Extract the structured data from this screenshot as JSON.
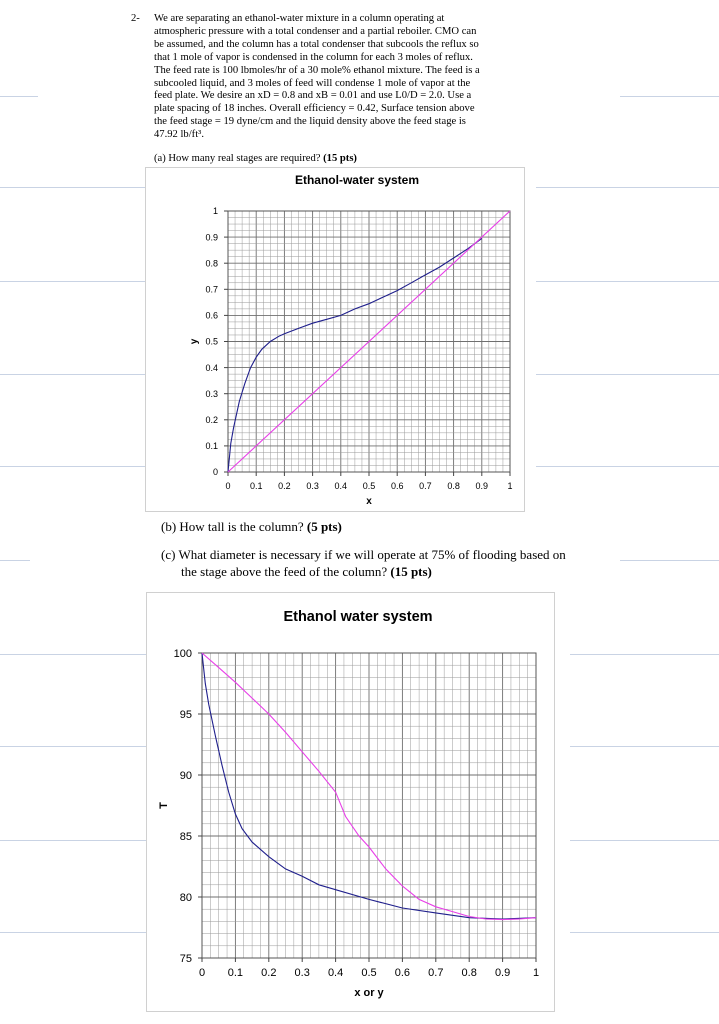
{
  "problem": {
    "number": "2-",
    "lines": [
      "We are separating an ethanol-water mixture in a column operating at",
      "atmospheric pressure with a total condenser and a partial reboiler. CMO can",
      "be assumed, and the column has a total condenser that subcools the reflux so",
      "that 1 mole of vapor is condensed in the column for each 3 moles of reflux.",
      "The feed rate is 100 lbmoles/hr of a 30 mole% ethanol mixture.  The feed is a",
      "subcooled liquid, and 3 moles of feed will condense 1 mole of vapor at the",
      "feed plate.  We desire an xD = 0.8 and xB = 0.01 and use L0/D = 2.0.  Use a",
      "plate spacing of 18 inches. Overall efficiency = 0.42, Surface tension above",
      "the feed stage = 19 dyne/cm and the liquid density above the feed stage is",
      "47.92 lb/ft³."
    ],
    "part_a": {
      "text": "(a) How many real stages are required? ",
      "points": "(15 pts)"
    },
    "part_b": {
      "text": "(b) How tall is the column? ",
      "points": "(5 pts)"
    },
    "part_c": {
      "text1": "(c) What diameter is necessary if we will operate at 75% of flooding based on",
      "text2": "the stage above the feed of the column? ",
      "points": "(15 pts)"
    }
  },
  "chart_data": [
    {
      "type": "line",
      "title": "Ethanol-water system",
      "xlabel": "x",
      "ylabel": "y",
      "xlim": [
        0,
        1
      ],
      "ylim": [
        0,
        1
      ],
      "grid": true,
      "x_ticks": [
        "0",
        "0.1",
        "0.2",
        "0.3",
        "0.4",
        "0.5",
        "0.6",
        "0.7",
        "0.8",
        "0.9",
        "1"
      ],
      "y_ticks": [
        "0",
        "0.1",
        "0.2",
        "0.3",
        "0.4",
        "0.5",
        "0.6",
        "0.7",
        "0.8",
        "0.9",
        "1"
      ],
      "series": [
        {
          "color": "#1f1f8c",
          "x": [
            0,
            0.01,
            0.02,
            0.04,
            0.06,
            0.08,
            0.1,
            0.12,
            0.15,
            0.18,
            0.2,
            0.25,
            0.3,
            0.35,
            0.4,
            0.45,
            0.5,
            0.55,
            0.6,
            0.65,
            0.7,
            0.75,
            0.8,
            0.85,
            0.9
          ],
          "y": [
            0,
            0.11,
            0.17,
            0.27,
            0.34,
            0.4,
            0.44,
            0.47,
            0.5,
            0.52,
            0.53,
            0.55,
            0.57,
            0.585,
            0.6,
            0.625,
            0.645,
            0.67,
            0.695,
            0.725,
            0.755,
            0.785,
            0.82,
            0.855,
            0.895
          ]
        },
        {
          "color": "#e83ee8",
          "x": [
            0,
            1
          ],
          "y": [
            0,
            1
          ]
        }
      ]
    },
    {
      "type": "line",
      "title": "Ethanol water system",
      "xlabel": "x or y",
      "ylabel": "T",
      "xlim": [
        0,
        1
      ],
      "ylim": [
        75,
        100
      ],
      "grid": true,
      "x_ticks": [
        "0",
        "0.1",
        "0.2",
        "0.3",
        "0.4",
        "0.5",
        "0.6",
        "0.7",
        "0.8",
        "0.9",
        "1"
      ],
      "y_ticks": [
        "75",
        "80",
        "85",
        "90",
        "95",
        "100"
      ],
      "series": [
        {
          "color": "#1f1f8c",
          "x": [
            0,
            0.01,
            0.02,
            0.04,
            0.06,
            0.08,
            0.1,
            0.12,
            0.15,
            0.2,
            0.25,
            0.3,
            0.35,
            0.4,
            0.5,
            0.6,
            0.7,
            0.8,
            0.9,
            1.0
          ],
          "y": [
            100,
            97.5,
            95.8,
            93.2,
            90.8,
            88.6,
            86.8,
            85.6,
            84.5,
            83.3,
            82.3,
            81.7,
            81.0,
            80.6,
            79.8,
            79.1,
            78.7,
            78.3,
            78.2,
            78.3
          ]
        },
        {
          "color": "#e83ee8",
          "x": [
            0,
            0.05,
            0.1,
            0.15,
            0.2,
            0.25,
            0.3,
            0.35,
            0.4,
            0.43,
            0.47,
            0.5,
            0.55,
            0.6,
            0.65,
            0.7,
            0.75,
            0.8,
            0.85,
            0.9,
            0.95,
            1.0
          ],
          "y": [
            100,
            98.8,
            97.6,
            96.3,
            95.0,
            93.5,
            91.9,
            90.3,
            88.6,
            86.6,
            85.0,
            84.1,
            82.3,
            80.9,
            79.8,
            79.2,
            78.8,
            78.4,
            78.2,
            78.15,
            78.2,
            78.3
          ]
        }
      ]
    }
  ]
}
